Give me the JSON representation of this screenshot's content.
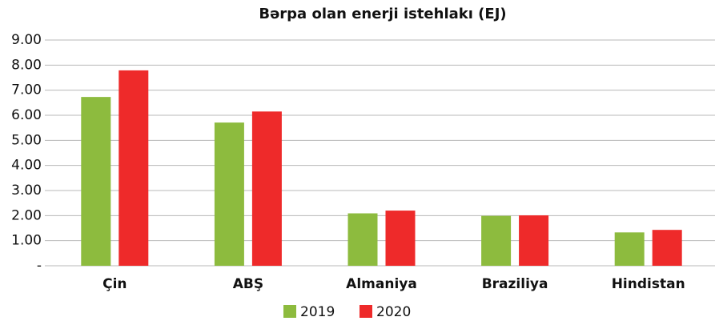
{
  "chart_data": {
    "type": "bar",
    "title": "Bərpa olan enerji istehlakı (EJ)",
    "categories": [
      "Çin",
      "ABŞ",
      "Almaniya",
      "Braziliya",
      "Hindistan"
    ],
    "series": [
      {
        "name": "2019",
        "color": "#8dbb3e",
        "values": [
          6.73,
          5.71,
          2.09,
          1.99,
          1.33
        ]
      },
      {
        "name": "2020",
        "color": "#ee2a2a",
        "values": [
          7.79,
          6.15,
          2.2,
          2.01,
          1.43
        ]
      }
    ],
    "ylim": [
      0,
      9
    ],
    "yticks": [
      {
        "value": 0,
        "label": "-"
      },
      {
        "value": 1,
        "label": "1.00"
      },
      {
        "value": 2,
        "label": "2.00"
      },
      {
        "value": 3,
        "label": "3.00"
      },
      {
        "value": 4,
        "label": "4.00"
      },
      {
        "value": 5,
        "label": "5.00"
      },
      {
        "value": 6,
        "label": "6.00"
      },
      {
        "value": 7,
        "label": "7.00"
      },
      {
        "value": 8,
        "label": "8.00"
      },
      {
        "value": 9,
        "label": "9.00"
      }
    ],
    "grid": true,
    "legend": "bottom"
  }
}
